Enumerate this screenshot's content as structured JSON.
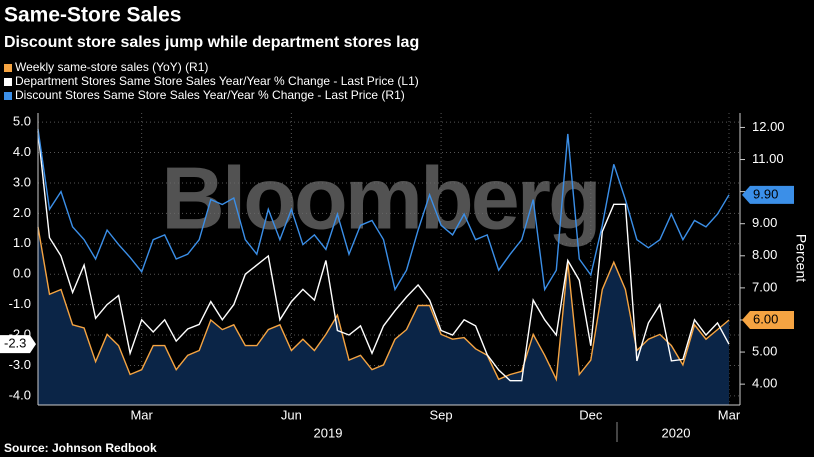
{
  "chart_data": {
    "type": "line",
    "title": "Same-Store Sales",
    "subtitle": "Discount store sales jump while department stores lag",
    "source": "Source: Johnson Redbook",
    "watermark": "Bloomberg",
    "y2_label": "Percent",
    "x_groups": [
      "2019",
      "2020"
    ],
    "categories": [
      null,
      null,
      null,
      null,
      null,
      null,
      null,
      null,
      null,
      "Mar",
      null,
      null,
      null,
      null,
      null,
      null,
      null,
      null,
      null,
      null,
      null,
      null,
      "Jun",
      null,
      null,
      null,
      null,
      null,
      null,
      null,
      null,
      null,
      null,
      null,
      null,
      "Sep",
      null,
      null,
      null,
      null,
      null,
      null,
      null,
      null,
      null,
      null,
      null,
      null,
      "Dec",
      null,
      null,
      null,
      null,
      null,
      null,
      null,
      null,
      null,
      null,
      null,
      "Mar"
    ],
    "ylim": [
      -4.3,
      5.3
    ],
    "yticks": [
      {
        "value": 5,
        "label": "5.0"
      },
      {
        "value": 4,
        "label": "4.0"
      },
      {
        "value": 3,
        "label": "3.0"
      },
      {
        "value": 2,
        "label": "2.0"
      },
      {
        "value": 1,
        "label": "1.0"
      },
      {
        "value": 0,
        "label": "0.0"
      },
      {
        "value": -1,
        "label": "-1.0"
      },
      {
        "value": -2,
        "label": "-2.0"
      },
      {
        "value": -3,
        "label": "-3.0"
      },
      {
        "value": -4,
        "label": "-4.0"
      }
    ],
    "y2lim": [
      3.35,
      12.45
    ],
    "y2ticks": [
      {
        "value": 12,
        "label": "12.00"
      },
      {
        "value": 11,
        "label": "11.00"
      },
      {
        "value": 10,
        "label": "10.00"
      },
      {
        "value": 9,
        "label": "9.00"
      },
      {
        "value": 8,
        "label": "8.00"
      },
      {
        "value": 7,
        "label": "7.00"
      },
      {
        "value": 6,
        "label": "6.00"
      },
      {
        "value": 5,
        "label": "5.00"
      },
      {
        "value": 4,
        "label": "4.00"
      }
    ],
    "grid": true,
    "series": [
      {
        "name": "Weekly same-store sales (YoY) (R1)",
        "color": "#f5a442",
        "fill": "#0b2547",
        "axis": "y2",
        "values": [
          8.9,
          6.8,
          6.95,
          5.85,
          5.75,
          4.7,
          5.55,
          5.2,
          4.3,
          4.45,
          5.2,
          5.2,
          4.45,
          4.9,
          5.05,
          6.0,
          5.7,
          5.85,
          5.2,
          5.2,
          5.7,
          5.85,
          5.05,
          5.4,
          5.05,
          5.55,
          6.15,
          4.75,
          4.9,
          4.45,
          4.6,
          5.4,
          5.7,
          6.45,
          6.45,
          5.55,
          5.4,
          5.45,
          5.1,
          4.9,
          4.15,
          4.3,
          4.4,
          5.55,
          4.9,
          4.15,
          7.8,
          4.3,
          4.75,
          6.95,
          7.8,
          6.95,
          5.05,
          5.4,
          5.55,
          5.2,
          4.6,
          5.85,
          5.4,
          5.7,
          6.0
        ],
        "value_labels": [
          null,
          null,
          null,
          null,
          null,
          null,
          null,
          null,
          null,
          null,
          null,
          null,
          null,
          null,
          null,
          null,
          null,
          null,
          null,
          null,
          null,
          null,
          null,
          null,
          null,
          null,
          null,
          null,
          null,
          null,
          null,
          null,
          null,
          null,
          null,
          null,
          null,
          null,
          null,
          null,
          null,
          null,
          null,
          null,
          null,
          null,
          null,
          null,
          null,
          null,
          null,
          null,
          null,
          null,
          null,
          null,
          null,
          null,
          null,
          null,
          "6.00"
        ]
      },
      {
        "name": "Department Stores Same Store Sales Year/Year % Change - Last Price (L1)",
        "color": "#ffffff",
        "axis": "y",
        "values": [
          4.7,
          1.2,
          0.6,
          -0.6,
          0.3,
          -1.45,
          -1.0,
          -0.7,
          -2.6,
          -1.5,
          -1.9,
          -1.5,
          -2.2,
          -1.8,
          -1.65,
          -0.9,
          -1.5,
          -1.0,
          0.0,
          0.3,
          0.6,
          -1.5,
          -0.9,
          -0.5,
          -0.85,
          0.45,
          -1.85,
          -2.0,
          -1.7,
          -2.6,
          -1.7,
          -1.2,
          -0.75,
          -0.35,
          -0.85,
          -1.85,
          -2.0,
          -1.5,
          -1.7,
          -2.65,
          -3.15,
          -3.5,
          -3.5,
          -0.85,
          -1.5,
          -2.0,
          0.45,
          -0.2,
          -2.35,
          1.4,
          2.3,
          2.3,
          -2.85,
          -1.6,
          -1.0,
          -2.85,
          -2.8,
          -1.5,
          -2.0,
          -1.6,
          -2.3
        ],
        "value_labels": [
          null,
          null,
          null,
          null,
          null,
          null,
          null,
          null,
          null,
          null,
          null,
          null,
          null,
          null,
          null,
          null,
          null,
          null,
          null,
          null,
          null,
          null,
          null,
          null,
          null,
          null,
          null,
          null,
          null,
          null,
          null,
          null,
          null,
          null,
          null,
          null,
          null,
          null,
          null,
          null,
          null,
          null,
          null,
          null,
          null,
          null,
          null,
          null,
          null,
          null,
          null,
          null,
          null,
          null,
          null,
          null,
          null,
          null,
          null,
          null,
          "-2.3"
        ]
      },
      {
        "name": "Discount Stores Same Store Sales Year/Year % Change - Last Price (R1)",
        "color": "#3b8fe8",
        "axis": "y2",
        "values": [
          11.95,
          9.45,
          10.0,
          8.9,
          8.5,
          7.9,
          8.8,
          8.35,
          7.95,
          7.5,
          8.5,
          8.65,
          7.9,
          8.05,
          8.5,
          9.75,
          9.6,
          9.8,
          8.5,
          8.05,
          9.45,
          8.5,
          9.45,
          8.35,
          8.65,
          8.2,
          9.3,
          8.05,
          8.95,
          9.1,
          8.5,
          6.95,
          7.55,
          8.8,
          9.9,
          8.95,
          8.65,
          9.3,
          8.5,
          8.65,
          7.55,
          8.05,
          8.5,
          9.75,
          6.95,
          7.55,
          11.8,
          7.9,
          7.4,
          8.95,
          10.85,
          9.75,
          8.5,
          8.25,
          8.5,
          9.3,
          8.5,
          9.1,
          8.9,
          9.3,
          9.9
        ],
        "value_labels": [
          null,
          null,
          null,
          null,
          null,
          null,
          null,
          null,
          null,
          null,
          null,
          null,
          null,
          null,
          null,
          null,
          null,
          null,
          null,
          null,
          null,
          null,
          null,
          null,
          null,
          null,
          null,
          null,
          null,
          null,
          null,
          null,
          null,
          null,
          null,
          null,
          null,
          null,
          null,
          null,
          null,
          null,
          null,
          null,
          null,
          null,
          null,
          null,
          null,
          null,
          null,
          null,
          null,
          null,
          null,
          null,
          null,
          null,
          null,
          null,
          "9.90"
        ]
      }
    ]
  }
}
